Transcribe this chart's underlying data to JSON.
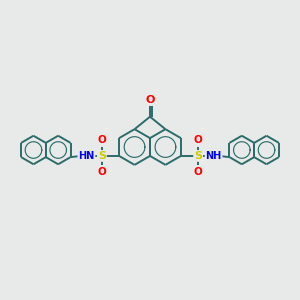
{
  "background_color": "#e8eaea",
  "bond_color": "#2d6b6b",
  "bond_width": 1.4,
  "atom_colors": {
    "O": "#ff0000",
    "S": "#cccc00",
    "N": "#0000ff",
    "C": "#2d6b6b"
  },
  "figsize": [
    3.0,
    3.0
  ],
  "dpi": 100
}
